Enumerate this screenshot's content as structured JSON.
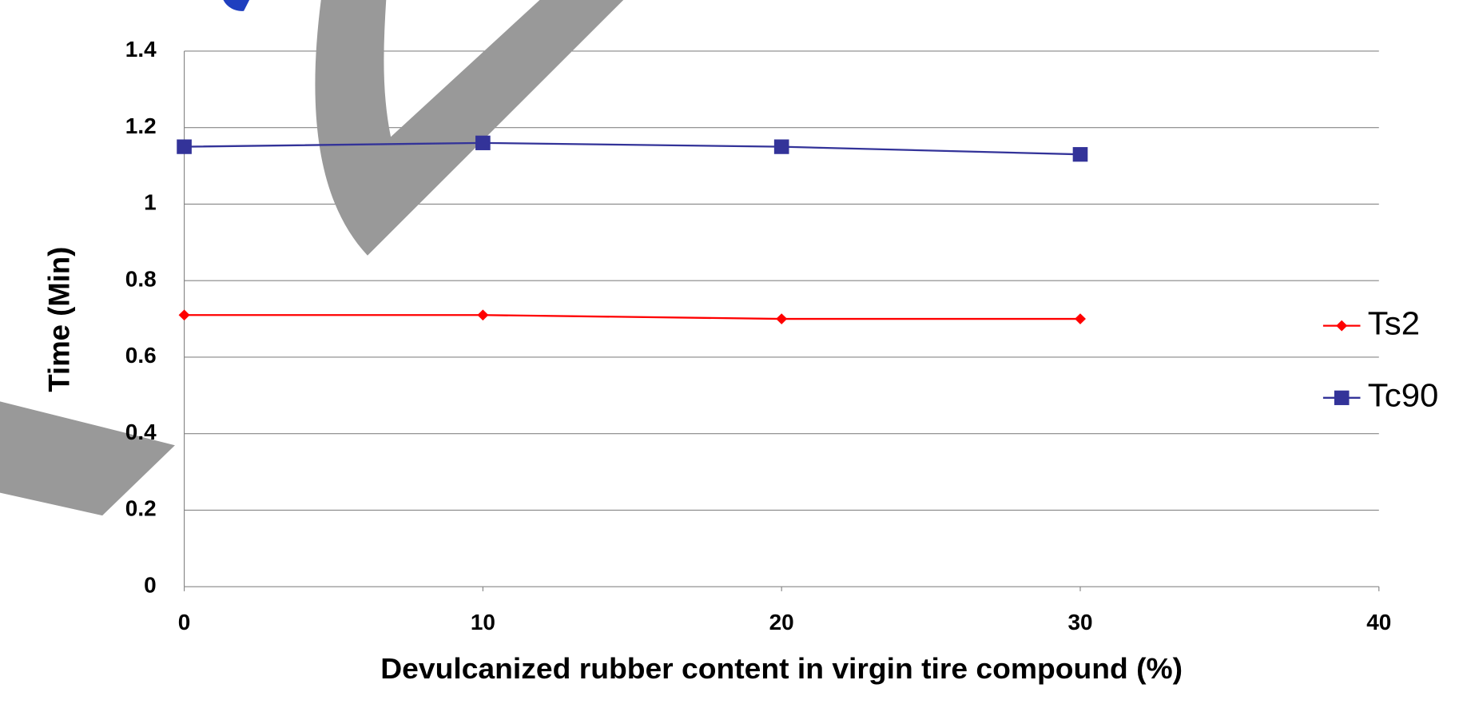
{
  "chart_data": {
    "type": "line",
    "x_label": "Devulcanized rubber content in virgin tire compound (%)",
    "y_label": "Time (Min)",
    "x": [
      0,
      10,
      20,
      30
    ],
    "series": [
      {
        "name": "Ts2",
        "color": "#ff0000",
        "marker": "diamond",
        "values": [
          0.71,
          0.71,
          0.7,
          0.7
        ]
      },
      {
        "name": "Tc90",
        "color": "#333399",
        "marker": "square",
        "values": [
          1.15,
          1.16,
          1.15,
          1.13
        ]
      }
    ],
    "xlim": [
      0,
      40
    ],
    "xticks": [
      0,
      10,
      20,
      30,
      40
    ],
    "ylim": [
      0,
      1.4
    ],
    "yticks": [
      0,
      0.2,
      0.4,
      0.6,
      0.8,
      1,
      1.2,
      1.4
    ],
    "grid": true,
    "legend": "right"
  }
}
